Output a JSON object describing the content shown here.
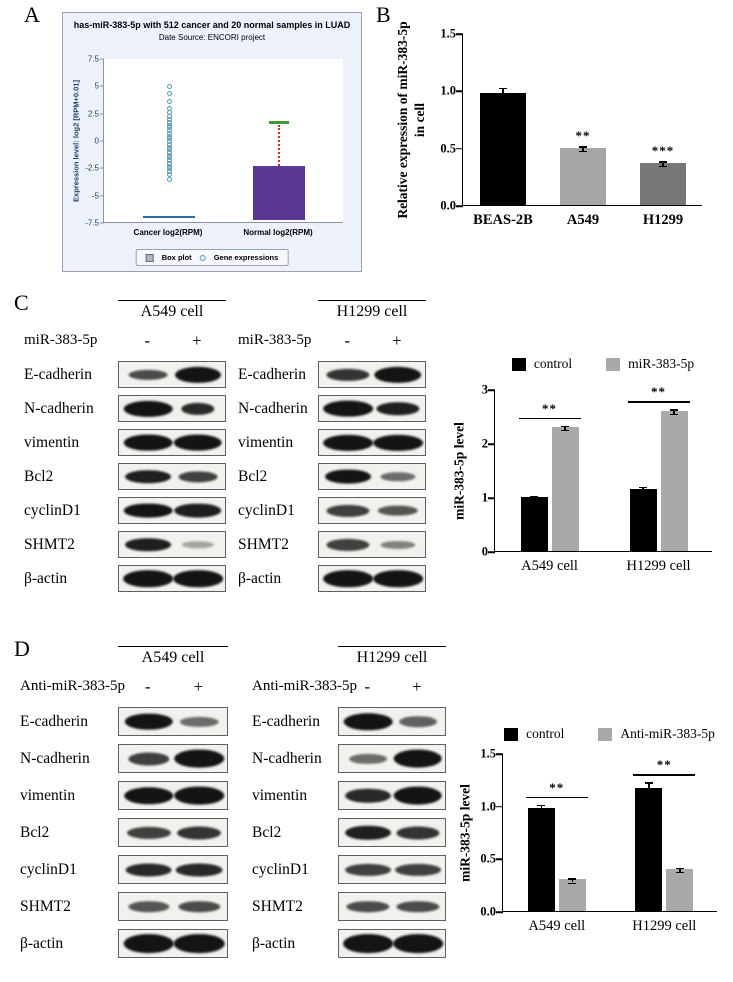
{
  "labels": {
    "a": "A",
    "b": "B",
    "c": "C",
    "d": "D"
  },
  "panelA": {
    "title": "has-miR-383-5p with 512 cancer and 20 normal samples in LUAD",
    "source": "Date Source:   ENCORI project",
    "ylabel": "Expression level:  log2 [RPM+0.01]",
    "xlabels": [
      "Cancer log2(RPM)",
      "Normal log2(RPM)"
    ],
    "legend": [
      "Box plot",
      "Gene expressions"
    ]
  },
  "panelC": {
    "condition": "miR-383-5p",
    "minus": "-",
    "plus": "+",
    "cells": [
      "A549 cell",
      "H1299 cell"
    ],
    "proteins": [
      "E-cadherin",
      "N-cadherin",
      "vimentin",
      "Bcl2",
      "cyclinD1",
      "SHMT2",
      "β-actin"
    ],
    "blots": {
      "a549": [
        [
          [
            0.72,
            0.38,
            0.75
          ],
          [
            0.85,
            0.6,
            1.0
          ]
        ],
        [
          [
            0.9,
            0.6,
            1.0
          ],
          [
            0.62,
            0.45,
            0.9
          ]
        ],
        [
          [
            0.9,
            0.62,
            1.0
          ],
          [
            0.9,
            0.62,
            1.0
          ]
        ],
        [
          [
            0.85,
            0.5,
            0.95
          ],
          [
            0.72,
            0.42,
            0.8
          ]
        ],
        [
          [
            0.9,
            0.55,
            1.0
          ],
          [
            0.88,
            0.55,
            0.95
          ]
        ],
        [
          [
            0.85,
            0.5,
            0.95
          ],
          [
            0.6,
            0.28,
            0.35
          ]
        ],
        [
          [
            0.92,
            0.65,
            1.0
          ],
          [
            0.92,
            0.65,
            1.0
          ]
        ]
      ],
      "h1299": [
        [
          [
            0.8,
            0.45,
            0.85
          ],
          [
            0.88,
            0.6,
            1.0
          ]
        ],
        [
          [
            0.92,
            0.62,
            1.0
          ],
          [
            0.8,
            0.5,
            0.95
          ]
        ],
        [
          [
            0.92,
            0.6,
            1.0
          ],
          [
            0.92,
            0.6,
            1.0
          ]
        ],
        [
          [
            0.85,
            0.55,
            1.0
          ],
          [
            0.65,
            0.35,
            0.6
          ]
        ],
        [
          [
            0.8,
            0.45,
            0.8
          ],
          [
            0.75,
            0.4,
            0.7
          ]
        ],
        [
          [
            0.8,
            0.45,
            0.8
          ],
          [
            0.65,
            0.3,
            0.5
          ]
        ],
        [
          [
            0.92,
            0.65,
            1.0
          ],
          [
            0.92,
            0.65,
            1.0
          ]
        ]
      ]
    }
  },
  "panelD": {
    "condition": "Anti-miR-383-5p",
    "minus": "-",
    "plus": "+",
    "cells": [
      "A549 cell",
      "H1299 cell"
    ],
    "proteins": [
      "E-cadherin",
      "N-cadherin",
      "vimentin",
      "Bcl2",
      "cyclinD1",
      "SHMT2",
      "β-actin"
    ],
    "blots": {
      "a549": [
        [
          [
            0.88,
            0.58,
            1.0
          ],
          [
            0.7,
            0.35,
            0.6
          ]
        ],
        [
          [
            0.75,
            0.45,
            0.8
          ],
          [
            0.9,
            0.65,
            1.0
          ]
        ],
        [
          [
            0.9,
            0.6,
            1.0
          ],
          [
            0.9,
            0.65,
            1.0
          ]
        ],
        [
          [
            0.8,
            0.42,
            0.8
          ],
          [
            0.8,
            0.45,
            0.85
          ]
        ],
        [
          [
            0.85,
            0.45,
            0.9
          ],
          [
            0.85,
            0.45,
            0.9
          ]
        ],
        [
          [
            0.75,
            0.4,
            0.7
          ],
          [
            0.75,
            0.4,
            0.75
          ]
        ],
        [
          [
            0.92,
            0.68,
            1.0
          ],
          [
            0.92,
            0.68,
            1.0
          ]
        ]
      ],
      "h1299": [
        [
          [
            0.9,
            0.6,
            1.0
          ],
          [
            0.7,
            0.4,
            0.65
          ]
        ],
        [
          [
            0.7,
            0.35,
            0.6
          ],
          [
            0.9,
            0.65,
            1.0
          ]
        ],
        [
          [
            0.85,
            0.5,
            0.9
          ],
          [
            0.9,
            0.65,
            1.0
          ]
        ],
        [
          [
            0.85,
            0.5,
            0.95
          ],
          [
            0.8,
            0.45,
            0.85
          ]
        ],
        [
          [
            0.85,
            0.42,
            0.8
          ],
          [
            0.85,
            0.42,
            0.8
          ]
        ],
        [
          [
            0.8,
            0.4,
            0.75
          ],
          [
            0.8,
            0.4,
            0.75
          ]
        ],
        [
          [
            0.92,
            0.68,
            1.0
          ],
          [
            0.92,
            0.68,
            1.0
          ]
        ]
      ]
    }
  },
  "chart_data": [
    {
      "id": "A",
      "type": "box-scatter",
      "title": "has-miR-383-5p with 512 cancer and 20 normal samples in LUAD",
      "subtitle": "Date Source: ENCORI project",
      "ylabel": "Expression level: log2 [RPM+0.01]",
      "ylim": [
        -7.5,
        7.5
      ],
      "ytick_vals": [
        7.5,
        5,
        2.5,
        0,
        -2.5,
        -5,
        -7.5
      ],
      "ytick_labels": [
        "7.5",
        "5",
        "2.5",
        "0",
        "-2.5",
        "-5",
        "-7.5"
      ],
      "categories": [
        "Cancer log2(RPM)",
        "Normal log2(RPM)"
      ],
      "cancer": {
        "points": [
          5.0,
          4.3,
          3.6,
          3.0,
          2.6,
          2.2,
          1.95,
          1.7,
          1.45,
          1.2,
          0.95,
          0.7,
          0.45,
          0.2,
          -0.05,
          -0.3,
          -0.55,
          -0.8,
          -1.05,
          -1.3,
          -1.55,
          -1.8,
          -2.05,
          -2.3,
          -2.55,
          -2.8,
          -3.1,
          -3.5
        ],
        "median_line": -6.9,
        "point_color": "#41a0c6",
        "line_color": "#2e6da4"
      },
      "normal": {
        "box_top": -2.3,
        "box_bottom": -7.2,
        "whisker_top": 1.7,
        "box_color": "#5c3796",
        "whisker_color": "#cc3300",
        "cap_color": "#3a9a3a"
      },
      "legend": [
        "Box plot",
        "Gene expressions"
      ]
    },
    {
      "id": "B",
      "type": "bar",
      "ylabel": "Relative expression of miR-383-5p in cell",
      "ylabel_lines": [
        "Relative expression of miR-383-5p",
        "in cell"
      ],
      "ymax": 1.5,
      "ytick_vals": [
        0,
        0.5,
        1.0,
        1.5
      ],
      "ytick_labels": [
        "0.0",
        "0.5",
        "1.0",
        "1.5"
      ],
      "categories": [
        "BEAS-2B",
        "A549",
        "H1299"
      ],
      "values": [
        0.98,
        0.5,
        0.37
      ],
      "errors": [
        0.05,
        0.02,
        0.02
      ],
      "colors": [
        "#000000",
        "#a6a6a6",
        "#777777"
      ],
      "sig": [
        "",
        "**",
        "***"
      ]
    },
    {
      "id": "C",
      "type": "grouped-bar",
      "ylabel": "miR-383-5p level",
      "ymax": 3,
      "ytick_vals": [
        0,
        1,
        2,
        3
      ],
      "ytick_labels": [
        "0",
        "1",
        "2",
        "3"
      ],
      "categories": [
        "A549 cell",
        "H1299 cell"
      ],
      "series": [
        {
          "name": "control",
          "color": "#000000",
          "values": [
            1.0,
            1.15
          ],
          "errors": [
            0.04,
            0.06
          ]
        },
        {
          "name": "miR-383-5p",
          "color": "#a9a9a9",
          "values": [
            2.3,
            2.6
          ],
          "errors": [
            0.04,
            0.04
          ]
        }
      ],
      "sig": [
        "**",
        "**"
      ],
      "legend_position": "top"
    },
    {
      "id": "D",
      "type": "grouped-bar",
      "ylabel": "miR-383-5p level",
      "ymax": 1.5,
      "ytick_vals": [
        0,
        0.5,
        1.0,
        1.5
      ],
      "ytick_labels": [
        "0.0",
        "0.5",
        "1.0",
        "1.5"
      ],
      "categories": [
        "A549 cell",
        "H1299 cell"
      ],
      "series": [
        {
          "name": "control",
          "color": "#000000",
          "values": [
            0.98,
            1.17
          ],
          "errors": [
            0.04,
            0.06
          ]
        },
        {
          "name": "Anti-miR-383-5p",
          "color": "#a9a9a9",
          "values": [
            0.3,
            0.4
          ],
          "errors": [
            0.02,
            0.02
          ]
        }
      ],
      "sig": [
        "**",
        "**"
      ],
      "legend_position": "top"
    }
  ]
}
